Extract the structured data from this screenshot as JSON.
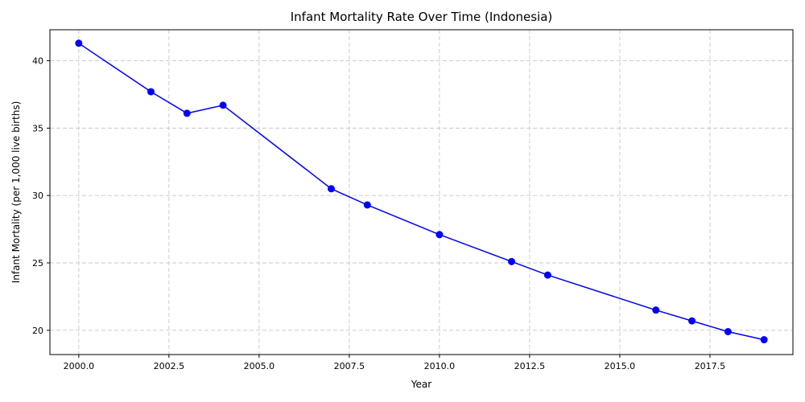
{
  "chart_data": {
    "type": "line",
    "title": "Infant Mortality Rate Over Time (Indonesia)",
    "xlabel": "Year",
    "ylabel": "Infant Mortality (per 1,000 live births)",
    "xlim": [
      1999.2,
      2019.8
    ],
    "ylim": [
      18.2,
      42.3
    ],
    "xticks": [
      2000.0,
      2002.5,
      2005.0,
      2007.5,
      2010.0,
      2012.5,
      2015.0,
      2017.5
    ],
    "xtick_labels": [
      "2000.0",
      "2002.5",
      "2005.0",
      "2007.5",
      "2010.0",
      "2012.5",
      "2015.0",
      "2017.5"
    ],
    "yticks": [
      20,
      25,
      30,
      35,
      40
    ],
    "ytick_labels": [
      "20",
      "25",
      "30",
      "35",
      "40"
    ],
    "grid": true,
    "color": "#0000ff",
    "series": [
      {
        "x": [
          2000,
          2002,
          2003,
          2004,
          2007,
          2008,
          2010,
          2012,
          2013,
          2016,
          2017,
          2018,
          2019
        ],
        "y": [
          41.3,
          37.7,
          36.1,
          36.7,
          30.5,
          29.3,
          27.1,
          25.1,
          24.1,
          21.5,
          20.7,
          19.9,
          19.3
        ]
      }
    ]
  }
}
